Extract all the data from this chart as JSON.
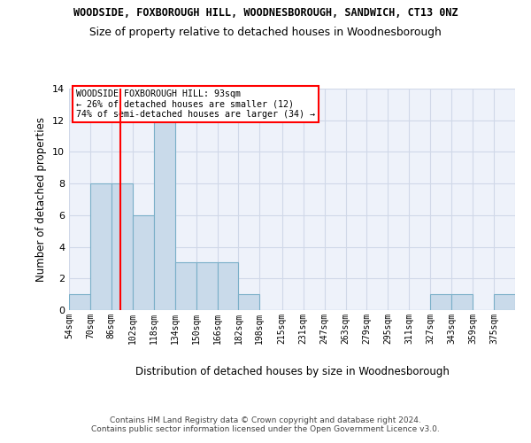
{
  "title1": "WOODSIDE, FOXBOROUGH HILL, WOODNESBOROUGH, SANDWICH, CT13 0NZ",
  "title2": "Size of property relative to detached houses in Woodnesborough",
  "xlabel": "Distribution of detached houses by size in Woodnesborough",
  "ylabel": "Number of detached properties",
  "footnote": "Contains HM Land Registry data © Crown copyright and database right 2024.\nContains public sector information licensed under the Open Government Licence v3.0.",
  "bin_labels": [
    "54sqm",
    "70sqm",
    "86sqm",
    "102sqm",
    "118sqm",
    "134sqm",
    "150sqm",
    "166sqm",
    "182sqm",
    "198sqm",
    "215sqm",
    "231sqm",
    "247sqm",
    "263sqm",
    "279sqm",
    "295sqm",
    "311sqm",
    "327sqm",
    "343sqm",
    "359sqm",
    "375sqm"
  ],
  "bin_edges": [
    54,
    70,
    86,
    102,
    118,
    134,
    150,
    166,
    182,
    198,
    215,
    231,
    247,
    263,
    279,
    295,
    311,
    327,
    343,
    359,
    375,
    391
  ],
  "counts": [
    1,
    8,
    8,
    6,
    12,
    3,
    3,
    3,
    1,
    0,
    0,
    0,
    0,
    0,
    0,
    0,
    0,
    1,
    1,
    0,
    1
  ],
  "bar_color": "#c9daea",
  "bar_edge_color": "#7aafc8",
  "red_line_x": 93,
  "annotation_box_text": "WOODSIDE FOXBOROUGH HILL: 93sqm\n← 26% of detached houses are smaller (12)\n74% of semi-detached houses are larger (34) →",
  "ylim": [
    0,
    14
  ],
  "yticks": [
    0,
    2,
    4,
    6,
    8,
    10,
    12,
    14
  ],
  "background_color": "#eef2fa",
  "grid_color": "#d0d8e8"
}
